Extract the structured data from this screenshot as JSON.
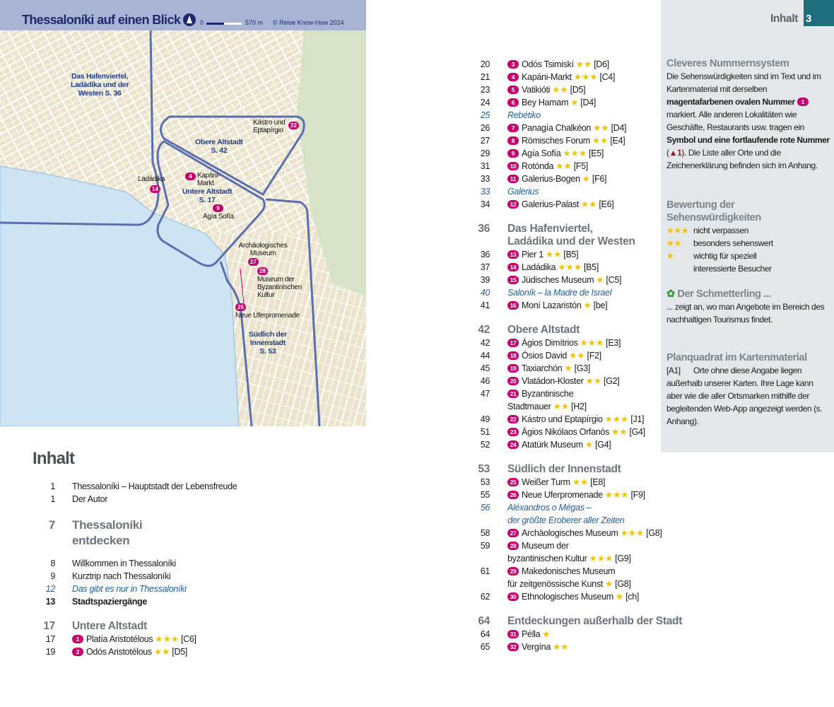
{
  "map": {
    "title": "Thessaloníki auf einen Blick",
    "scale_start": "0",
    "scale_end": "570 m",
    "copyright": "© Reise Know-How 2024",
    "regions": [
      "Das Hafenviertel, Ladádika und der Westen S. 36",
      "Obere Altstadt S. 42",
      "Untere Altstadt S. 17",
      "Südlich der Innenstadt S. 53"
    ],
    "region_lines": [
      [
        "Das Hafenviertel,",
        "Ladádika und der",
        "Westen  S. 36"
      ],
      [
        "Obere Altstadt",
        "S. 42"
      ],
      [
        "Untere Altstadt",
        "S. 17"
      ],
      [
        "Südlich der",
        "Innenstadt",
        "S. 53"
      ]
    ],
    "places": [
      {
        "num": "22",
        "label": "Kástro und Eptapírgio"
      },
      {
        "num": "4",
        "label": "Kapáni-Markt"
      },
      {
        "num": "14",
        "label": "Ladádika"
      },
      {
        "num": "9",
        "label": "Agía Sofía"
      },
      {
        "num": "27",
        "label": "Archäologisches Museum"
      },
      {
        "num": "28",
        "label": "Museum der Byzantinischen Kultur"
      },
      {
        "num": "26",
        "label": "Neue Uferpromenade"
      }
    ],
    "colors": {
      "header": "#a9b3d3",
      "outline": "#5a6fb0",
      "sea": "#cde4f4",
      "land": "#ece3cd",
      "park": "#d6e3c6"
    }
  },
  "toc_title": "Inhalt",
  "toc_left": [
    {
      "type": "normal",
      "page": "1",
      "text": "Thessaloníki – Hauptstadt der Lebensfreude"
    },
    {
      "type": "normal",
      "page": "1",
      "text": "Der Autor"
    },
    {
      "type": "sec big",
      "page": "7",
      "text": "Thessaloníki"
    },
    {
      "type": "secc big",
      "page": "",
      "text": "entdecken"
    },
    {
      "type": "normal gap",
      "page": "8",
      "text": "Willkommen in Thessaloníki"
    },
    {
      "type": "normal",
      "page": "9",
      "text": "Kurztrip nach Thessaloníki"
    },
    {
      "type": "it",
      "page": "12",
      "text": "Das gibt es nur in Thessaloníki"
    },
    {
      "type": "bold",
      "page": "13",
      "text": "Stadtspaziergänge"
    },
    {
      "type": "sec",
      "page": "17",
      "text": "Untere Altstadt"
    },
    {
      "type": "sight",
      "page": "17",
      "num": "1",
      "text": "Platía Aristotélous",
      "stars": "★★★",
      "grid": "[C6]"
    },
    {
      "type": "sight",
      "page": "19",
      "num": "2",
      "text": "Odós Aristotélous",
      "stars": "★★",
      "grid": "[D5]"
    }
  ],
  "toc_right": [
    {
      "type": "sight",
      "page": "20",
      "num": "3",
      "text": "Odós Tsimiskí",
      "stars": "★★",
      "grid": "[D6]"
    },
    {
      "type": "sight",
      "page": "21",
      "num": "4",
      "text": "Kapáni-Markt",
      "stars": "★★★",
      "grid": "[C4]"
    },
    {
      "type": "sight",
      "page": "23",
      "num": "5",
      "text": "Vatikióti",
      "stars": "★★",
      "grid": "[D5]"
    },
    {
      "type": "sight",
      "page": "24",
      "num": "6",
      "text": "Bey Hamam",
      "stars": "★",
      "grid": "[D4]"
    },
    {
      "type": "it",
      "page": "25",
      "text": "Rebétiko"
    },
    {
      "type": "sight",
      "page": "26",
      "num": "7",
      "text": "Panagía Chalkéon",
      "stars": "★★",
      "grid": "[D4]"
    },
    {
      "type": "sight",
      "page": "27",
      "num": "8",
      "text": "Römisches Forum",
      "stars": "★★",
      "grid": "[E4]"
    },
    {
      "type": "sight",
      "page": "29",
      "num": "9",
      "text": "Agía Sofía",
      "stars": "★★★",
      "grid": "[E5]"
    },
    {
      "type": "sight",
      "page": "31",
      "num": "10",
      "text": "Rotónda",
      "stars": "★★",
      "grid": "[F5]"
    },
    {
      "type": "sight",
      "page": "33",
      "num": "11",
      "text": "Galerius-Bogen",
      "stars": "★",
      "grid": "[F6]"
    },
    {
      "type": "it",
      "page": "33",
      "text": "Galerius"
    },
    {
      "type": "sight",
      "page": "34",
      "num": "12",
      "text": "Galerius-Palast",
      "stars": "★★",
      "grid": "[E6]"
    },
    {
      "type": "sec",
      "page": "36",
      "text": "Das Hafenviertel,"
    },
    {
      "type": "secc",
      "page": "",
      "text": "Ladádika und der Westen"
    },
    {
      "type": "sight",
      "page": "36",
      "num": "13",
      "text": "Pier 1",
      "stars": "★★",
      "grid": "[B5]"
    },
    {
      "type": "sight",
      "page": "37",
      "num": "14",
      "text": "Ladádika",
      "stars": "★★★",
      "grid": "[B5]"
    },
    {
      "type": "sight",
      "page": "39",
      "num": "15",
      "text": "Jüdisches Museum",
      "stars": "★",
      "grid": "[C5]"
    },
    {
      "type": "it",
      "page": "40",
      "text": "Saloník – la Madre de Israel"
    },
    {
      "type": "sight",
      "page": "41",
      "num": "16",
      "text": "Moní Lazaristón",
      "stars": "★",
      "grid": "[be]"
    },
    {
      "type": "sec",
      "page": "42",
      "text": "Obere Altstadt"
    },
    {
      "type": "sight",
      "page": "42",
      "num": "17",
      "text": "Ágios Dimítrios",
      "stars": "★★★",
      "grid": "[E3]"
    },
    {
      "type": "sight",
      "page": "44",
      "num": "18",
      "text": "Ósios David",
      "stars": "★★",
      "grid": "[F2]"
    },
    {
      "type": "sight",
      "page": "45",
      "num": "19",
      "text": "Taxiarchón",
      "stars": "★",
      "grid": "[G3]"
    },
    {
      "type": "sight",
      "page": "46",
      "num": "20",
      "text": "Vlatádon-Kloster",
      "stars": "★★",
      "grid": "[G2]"
    },
    {
      "type": "sight",
      "page": "47",
      "num": "21",
      "text": "Byzantinische"
    },
    {
      "type": "cont",
      "page": "",
      "text": "Stadtmauer",
      "stars": "★★",
      "grid": "[H2]"
    },
    {
      "type": "sight",
      "page": "49",
      "num": "22",
      "text": "Kástro und Eptapírgio",
      "stars": "★★★",
      "grid": "[J1]"
    },
    {
      "type": "sight",
      "page": "51",
      "num": "23",
      "text": "Ágios Nikólaos Orfanós",
      "stars": "★★",
      "grid": "[G4]"
    },
    {
      "type": "sight",
      "page": "52",
      "num": "24",
      "text": "Atatürk Museum",
      "stars": "★",
      "grid": "[G4]"
    },
    {
      "type": "sec",
      "page": "53",
      "text": "Südlich der Innenstadt"
    },
    {
      "type": "sight",
      "page": "53",
      "num": "25",
      "text": "Weißer Turm",
      "stars": "★★",
      "grid": "[E8]"
    },
    {
      "type": "sight",
      "page": "55",
      "num": "26",
      "text": "Neue Uferpromenade",
      "stars": "★★★",
      "grid": "[F9]"
    },
    {
      "type": "it",
      "page": "56",
      "text": "Aléxandros o Mégas –"
    },
    {
      "type": "it",
      "page": "",
      "text": "der größte Eroberer aller Zeiten"
    },
    {
      "type": "sight",
      "page": "58",
      "num": "27",
      "text": "Archäologisches Museum",
      "stars": "★★★",
      "grid": "[G8]"
    },
    {
      "type": "sight",
      "page": "59",
      "num": "28",
      "text": "Museum der"
    },
    {
      "type": "cont",
      "page": "",
      "text": "byzantinischen Kultur",
      "stars": "★★★",
      "grid": "[G9]"
    },
    {
      "type": "sight",
      "page": "61",
      "num": "29",
      "text": "Makedonisches Museum"
    },
    {
      "type": "cont",
      "page": "",
      "text": "für zeitgenössische Kunst",
      "stars": "★",
      "grid": "[G8]"
    },
    {
      "type": "sight",
      "page": "62",
      "num": "30",
      "text": "Ethnologisches Museum",
      "stars": "★",
      "grid": "[ch]"
    },
    {
      "type": "sec",
      "page": "64",
      "text": "Entdeckungen außerhalb der Stadt"
    },
    {
      "type": "sight",
      "page": "64",
      "num": "31",
      "text": "Pélla",
      "stars": "★"
    },
    {
      "type": "sight",
      "page": "65",
      "num": "32",
      "text": "Vergína",
      "stars": "★★"
    }
  ],
  "sidebar": {
    "tab_word": "Inhalt",
    "tab_page": "3",
    "s1_title": "Cleveres Nummernsystem",
    "s1_a": "Die Sehenswürdigkeiten sind im Text und im Kartenmaterial mit derselben ",
    "s1_b": "magentafarbenen ovalen Nummer",
    "s1_badge": "1",
    "s1_c": " markiert. Alle anderen Lokalitäten wie Geschäfte, Restaurants usw. tragen ein ",
    "s1_d": "Symbol und eine fortlaufende rote Nummer",
    "s1_e": " (",
    "s1_f": "1",
    "s1_g": "). Die Liste aller Orte und die Zeichenerklärung befinden sich im Anhang.",
    "s2_title": "Bewertung der Sehenswürdigkeiten",
    "ratings": [
      {
        "stars": "★★★",
        "text": "nicht verpassen"
      },
      {
        "stars": "★★",
        "text": "besonders sehenswert"
      },
      {
        "stars": "★",
        "text": "wichtig für speziell interessierte Besucher"
      }
    ],
    "s3_title": "Der Schmetterling ...",
    "s3_text": "... zeigt an, wo man Angebote im Bereich des nachhaltigen Tourismus findet.",
    "s4_title": "Planquadrat im Kartenmaterial",
    "s4_key": "[A1]",
    "s4_text": "Orte ohne diese Angabe liegen außerhalb unserer Karten. Ihre Lage kann aber wie die aller Ortsmarken mithilfe der begleitenden Web-App angezeigt werden (s. Anhang).",
    "colors": {
      "background": "#e4e7ea",
      "tab": "#1f6f7a",
      "badge": "#c8006e",
      "star": "#f2c200"
    }
  }
}
